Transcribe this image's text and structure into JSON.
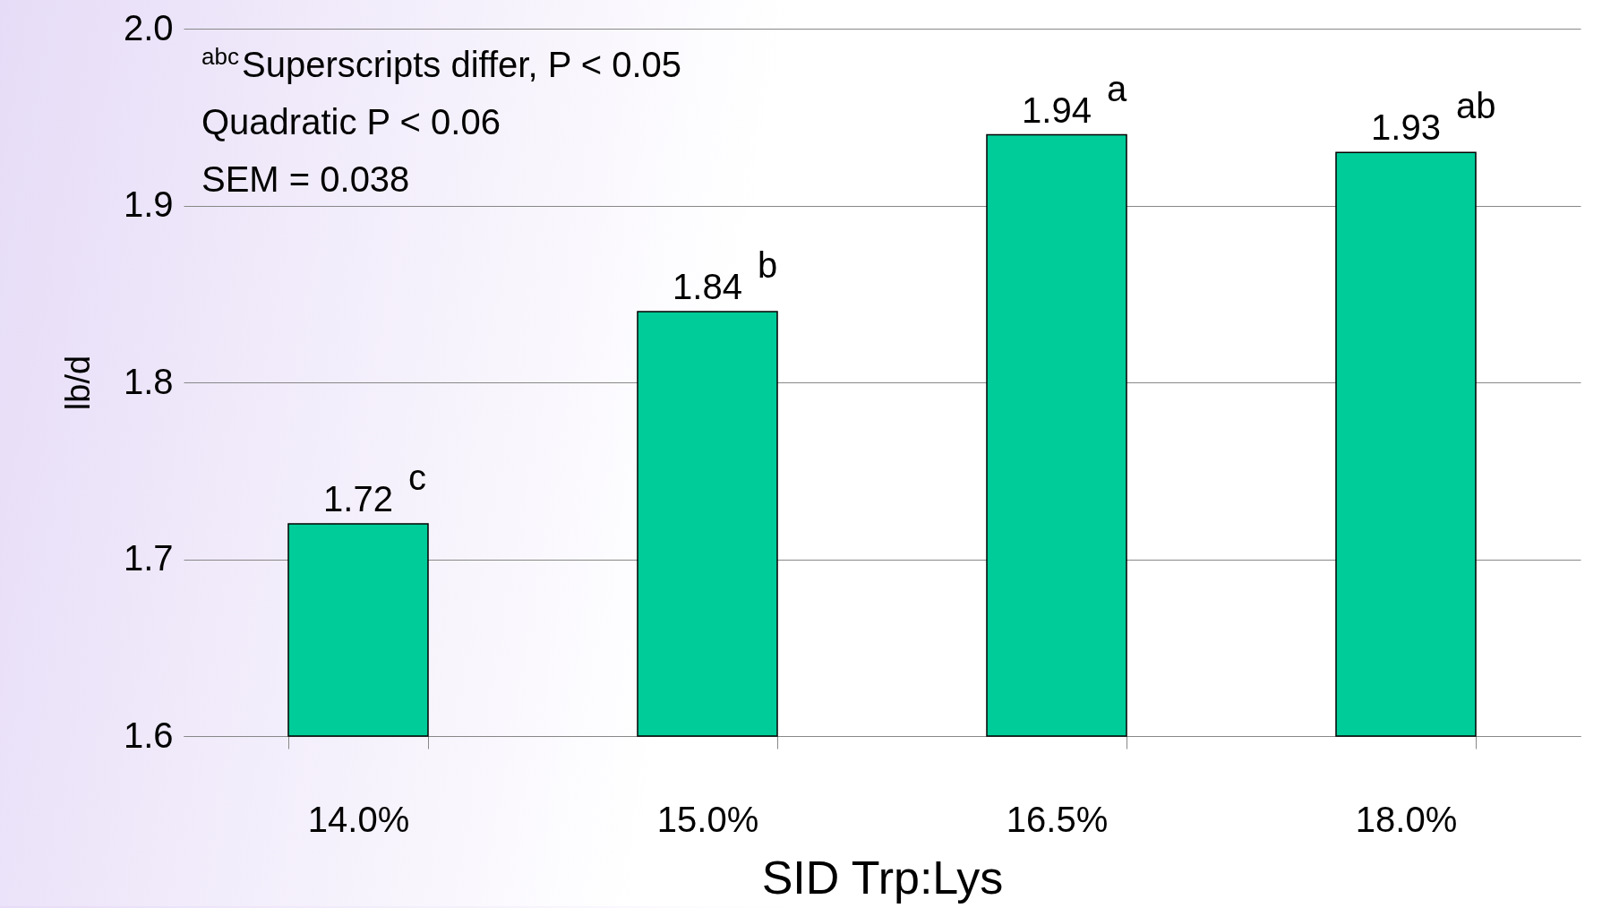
{
  "chart_data": {
    "type": "bar",
    "ylabel": "lb/d",
    "xlabel": "SID Trp:Lys",
    "categories": [
      "14.0%",
      "15.0%",
      "16.5%",
      "18.0%"
    ],
    "values": [
      1.72,
      1.84,
      1.94,
      1.93
    ],
    "color": "#00cc99",
    "ylim": [
      1.6,
      2.0
    ],
    "yticks": [
      1.6,
      1.7,
      1.8,
      1.9,
      {
        "value": 2,
        "label": "2.0"
      }
    ],
    "grid": "y",
    "data_labels": true,
    "annotations": [
      "$^{abc}$Superscripts differ, P < 0.05",
      "Quadratic P < 0.06",
      "SEM = 0.038",
      {
        "text": "c",
        "x": "14.0%",
        "y": 1.72
      },
      {
        "text": "b",
        "x": "15.0%",
        "y": 1.84
      },
      {
        "text": "a",
        "x": "16.5%",
        "y": 1.94
      },
      {
        "text": "ab",
        "x": "18.0%",
        "y": 1.93
      }
    ]
  }
}
